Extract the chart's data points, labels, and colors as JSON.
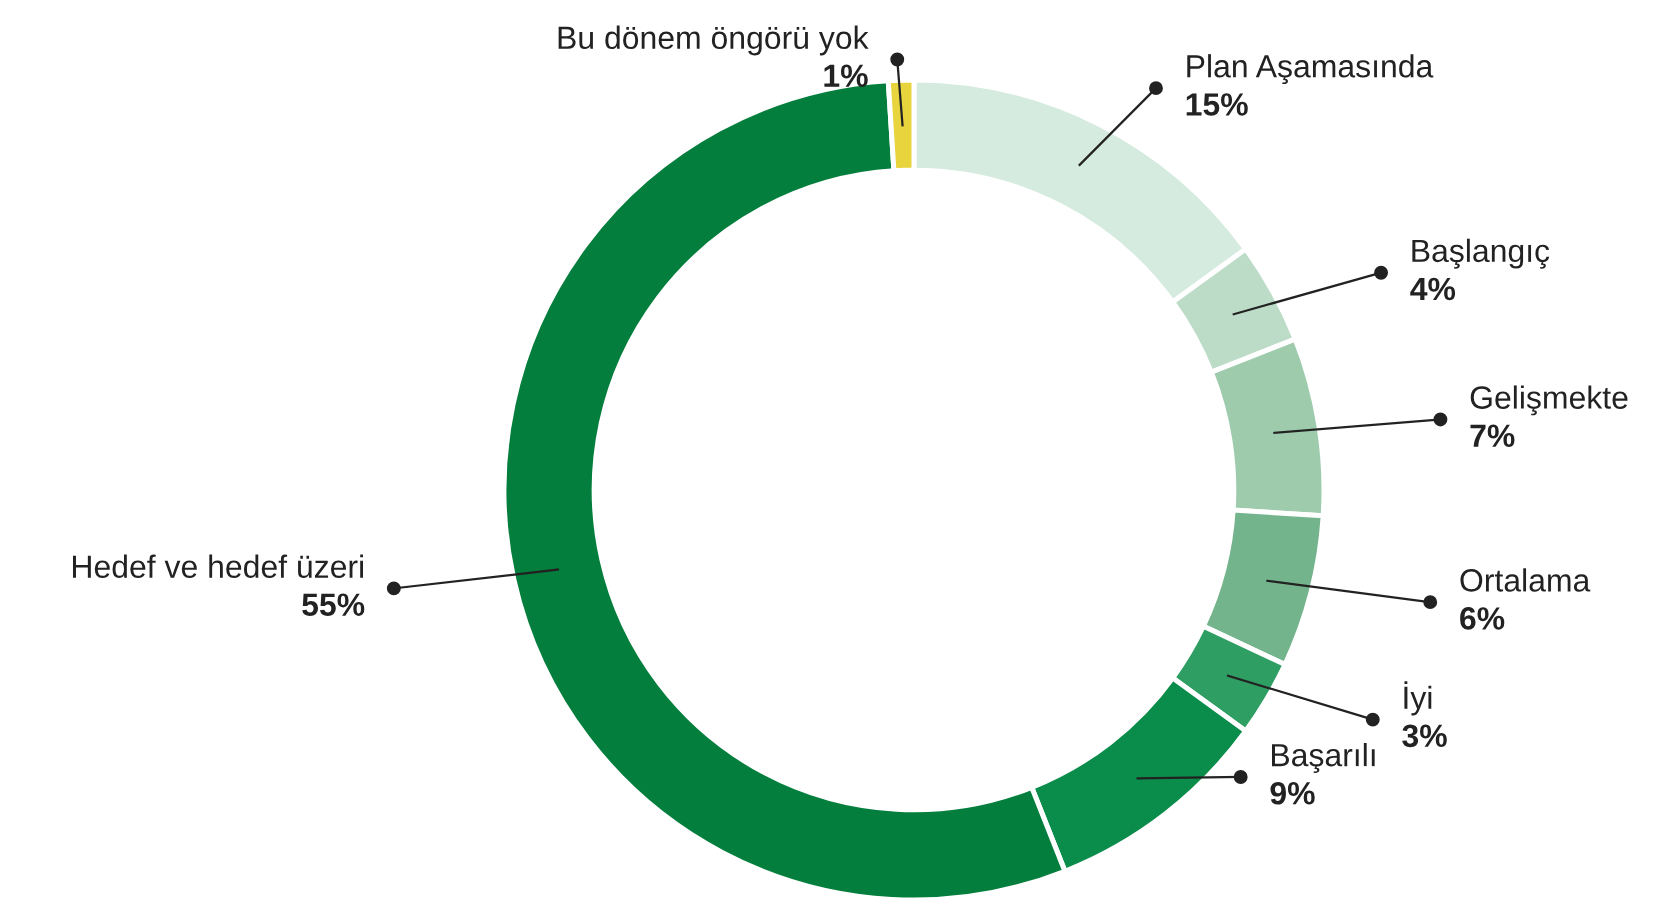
{
  "chart_data": {
    "type": "donut",
    "categories": [
      "Plan Aşamasında",
      "Başlangıç",
      "Gelişmekte",
      "Ortalama",
      "İyi",
      "Başarılı",
      "Hedef ve hedef üzeri",
      "Bu dönem öngörü yok"
    ],
    "values": [
      15,
      4,
      7,
      6,
      3,
      9,
      55,
      1
    ],
    "colors": [
      "#d6ebdf",
      "#bcdcc8",
      "#9dcbac",
      "#74b48d",
      "#2e9e63",
      "#0a8c4a",
      "#047e3c",
      "#e8d43c"
    ],
    "value_labels": [
      "15%",
      "4%",
      "7%",
      "6%",
      "3%",
      "9%",
      "55%",
      "1%"
    ],
    "legend": false
  }
}
